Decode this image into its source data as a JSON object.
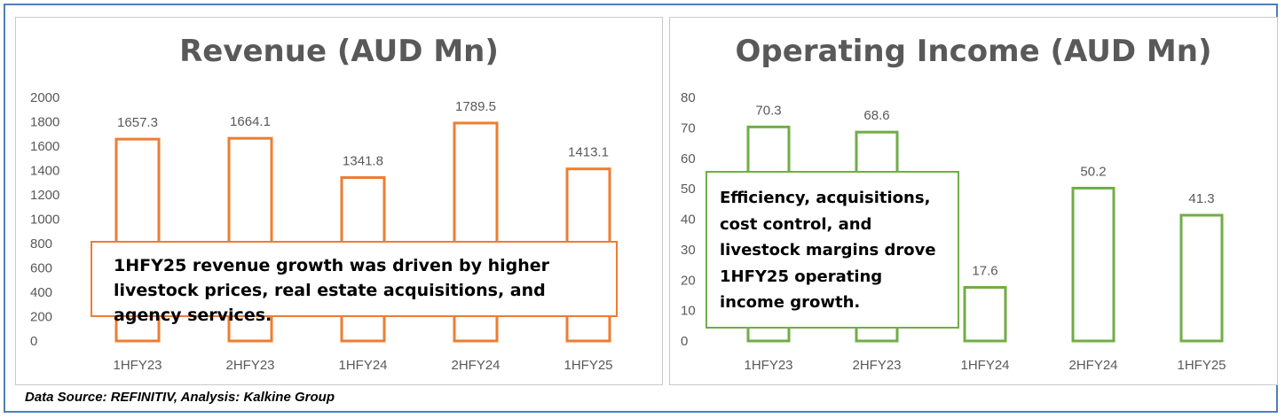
{
  "chart_data": [
    {
      "type": "bar",
      "title": "Revenue (AUD Mn)",
      "categories": [
        "1HFY23",
        "2HFY23",
        "1HFY24",
        "2HFY24",
        "1HFY25"
      ],
      "values": [
        1657.3,
        1664.1,
        1341.8,
        1789.5,
        1413.1
      ],
      "data_labels": [
        "1657.3",
        "1664.1",
        "1341.8",
        "1789.5",
        "1413.1"
      ],
      "yticks": [
        0,
        200,
        400,
        600,
        800,
        1000,
        1200,
        1400,
        1600,
        1800,
        2000
      ],
      "ylim": [
        0,
        2000
      ],
      "style": "outlined bars",
      "color": "#ed7d31",
      "grid": false,
      "legend": "none",
      "annotation": "1HFY25 revenue growth was driven by higher livestock prices, real estate acquisitions, and agency services."
    },
    {
      "type": "bar",
      "title": "Operating Income (AUD Mn)",
      "categories": [
        "1HFY23",
        "2HFY23",
        "1HFY24",
        "2HFY24",
        "1HFY25"
      ],
      "values": [
        70.3,
        68.6,
        17.6,
        50.2,
        41.3
      ],
      "data_labels": [
        "70.3",
        "68.6",
        "17.6",
        "50.2",
        "41.3"
      ],
      "yticks": [
        0,
        10,
        20,
        30,
        40,
        50,
        60,
        70,
        80
      ],
      "ylim": [
        0,
        80
      ],
      "style": "outlined bars",
      "color": "#70ad47",
      "grid": false,
      "legend": "none",
      "annotation": "Efficiency, acquisitions, cost control, and livestock margins drove 1HFY25 operating income growth."
    }
  ],
  "footer": {
    "source": "Data Source: REFINITIV, Analysis: Kalkine Group"
  }
}
